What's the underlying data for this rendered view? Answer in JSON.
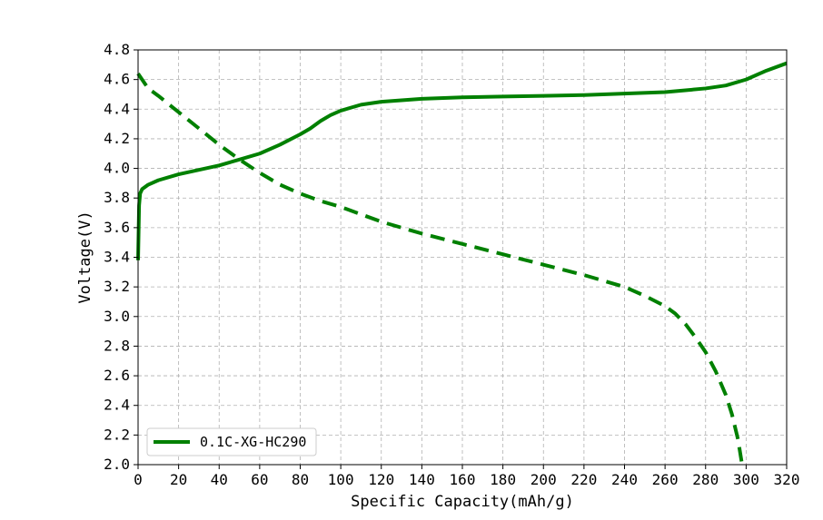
{
  "chart_data": {
    "type": "line",
    "title": "",
    "xlabel": "Specific Capacity(mAh/g)",
    "ylabel": "Voltage(V)",
    "xlim": [
      0,
      320
    ],
    "ylim": [
      2.0,
      4.8
    ],
    "xticks": [
      0,
      20,
      40,
      60,
      80,
      100,
      120,
      140,
      160,
      180,
      200,
      220,
      240,
      260,
      280,
      300,
      320
    ],
    "yticks": [
      2.0,
      2.2,
      2.4,
      2.6,
      2.8,
      3.0,
      3.2,
      3.4,
      3.6,
      3.8,
      4.0,
      4.2,
      4.4,
      4.6,
      4.8
    ],
    "xtick_labels": [
      "0",
      "20",
      "40",
      "60",
      "80",
      "100",
      "120",
      "140",
      "160",
      "180",
      "200",
      "220",
      "240",
      "260",
      "280",
      "300",
      "320"
    ],
    "ytick_labels": [
      "2.0",
      "2.2",
      "2.4",
      "2.6",
      "2.8",
      "3.0",
      "3.2",
      "3.4",
      "3.6",
      "3.8",
      "4.0",
      "4.2",
      "4.4",
      "4.6",
      "4.8"
    ],
    "grid": true,
    "legend": {
      "position": "lower-left",
      "entries": [
        "0.1C-XG-HC290"
      ]
    },
    "colors": {
      "series": "#008000"
    },
    "series": [
      {
        "name": "0.1C-XG-HC290",
        "role": "charge",
        "style": "solid",
        "x": [
          0,
          0.5,
          1,
          2,
          5,
          10,
          20,
          30,
          40,
          50,
          60,
          70,
          80,
          85,
          90,
          95,
          100,
          110,
          120,
          140,
          160,
          180,
          200,
          220,
          240,
          260,
          280,
          290,
          300,
          310,
          320
        ],
        "y": [
          3.38,
          3.75,
          3.83,
          3.86,
          3.89,
          3.92,
          3.96,
          3.99,
          4.02,
          4.06,
          4.1,
          4.16,
          4.23,
          4.27,
          4.32,
          4.36,
          4.39,
          4.43,
          4.45,
          4.47,
          4.48,
          4.485,
          4.49,
          4.495,
          4.505,
          4.515,
          4.54,
          4.56,
          4.6,
          4.66,
          4.71
        ]
      },
      {
        "name": "",
        "role": "discharge",
        "style": "dashed",
        "x": [
          0,
          5,
          10,
          20,
          30,
          40,
          50,
          60,
          70,
          80,
          90,
          100,
          120,
          140,
          160,
          180,
          200,
          220,
          240,
          250,
          260,
          265,
          270,
          275,
          280,
          285,
          290,
          293,
          296,
          298
        ],
        "y": [
          4.64,
          4.54,
          4.49,
          4.38,
          4.27,
          4.16,
          4.06,
          3.97,
          3.89,
          3.83,
          3.78,
          3.74,
          3.64,
          3.56,
          3.49,
          3.42,
          3.35,
          3.28,
          3.2,
          3.14,
          3.07,
          3.02,
          2.95,
          2.86,
          2.76,
          2.63,
          2.47,
          2.34,
          2.17,
          2.0
        ]
      }
    ]
  }
}
